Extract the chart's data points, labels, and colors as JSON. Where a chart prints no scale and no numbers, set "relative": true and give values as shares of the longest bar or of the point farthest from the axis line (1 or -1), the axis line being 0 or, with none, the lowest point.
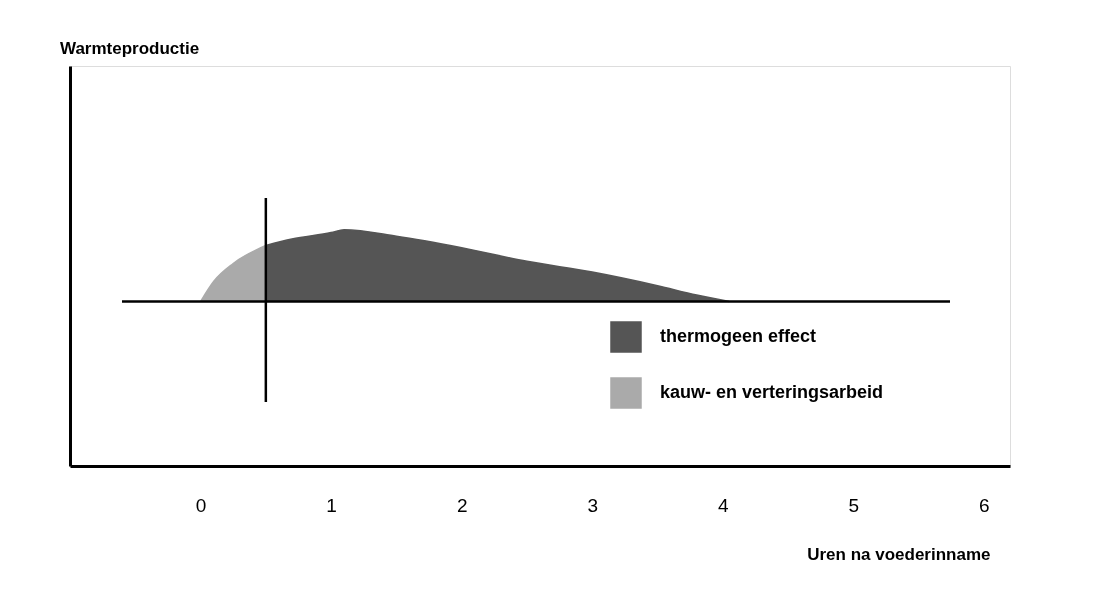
{
  "chart_data": {
    "type": "area",
    "relative": true,
    "xlabel": "Uren na voederinname",
    "annotations": [
      "Warmteproductie"
    ],
    "xlim": [
      -1,
      6.2
    ],
    "xticks": [
      0,
      1,
      2,
      3,
      4,
      5,
      6
    ],
    "series": [
      {
        "name": "thermogeen effect",
        "color": "#555555",
        "x": [
          0.5,
          0.7,
          1.0,
          1.1,
          1.5,
          2.0,
          2.5,
          3.0,
          3.5,
          3.8,
          4.05
        ],
        "values": [
          0.78,
          0.87,
          0.96,
          1.0,
          0.91,
          0.75,
          0.56,
          0.41,
          0.22,
          0.09,
          0
        ]
      },
      {
        "name": "kauw- en verteringsarbeid",
        "color": "#aaaaaa",
        "x": [
          0,
          0.1,
          0.25,
          0.5
        ],
        "values": [
          0,
          0.28,
          0.53,
          0.78
        ]
      }
    ],
    "ref_lines": [
      {
        "axis": "x",
        "value": 0.5
      }
    ],
    "legend": "bottom right",
    "grid": false
  }
}
